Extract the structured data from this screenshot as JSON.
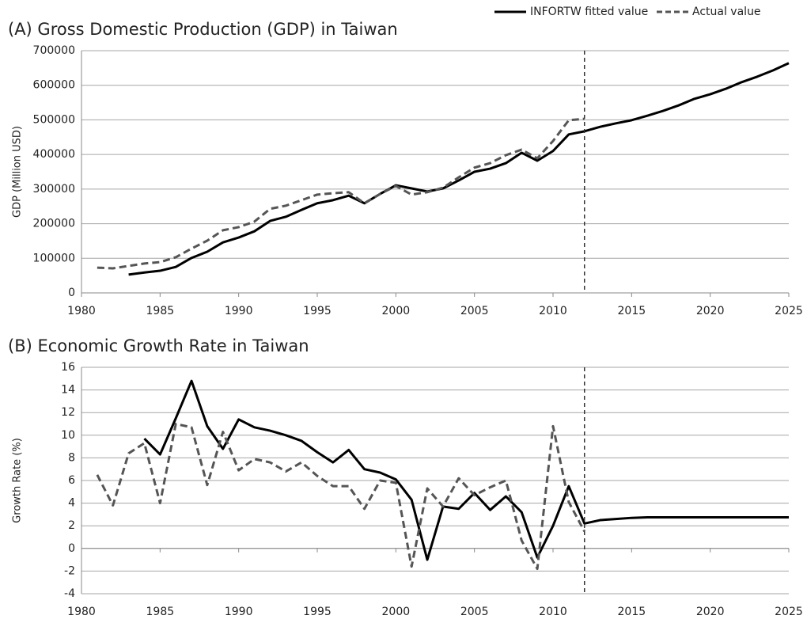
{
  "chart_data": [
    {
      "type": "line",
      "title": "(A) Gross Domestic Production (GDP) in Taiwan",
      "y_label": "GDP (Million USD)",
      "x": [
        1981,
        1982,
        1983,
        1984,
        1985,
        1986,
        1987,
        1988,
        1989,
        1990,
        1991,
        1992,
        1993,
        1994,
        1995,
        1996,
        1997,
        1998,
        1999,
        2000,
        2001,
        2002,
        2003,
        2004,
        2005,
        2006,
        2007,
        2008,
        2009,
        2010,
        2011,
        2012,
        2013,
        2014,
        2015,
        2016,
        2017,
        2018,
        2019,
        2020,
        2021,
        2022,
        2023,
        2024,
        2025
      ],
      "series": [
        {
          "name": "INFORTW fitted value",
          "color": "#000000",
          "dash": false,
          "values": [
            null,
            null,
            53000,
            59000,
            64000,
            75000,
            101000,
            119000,
            146000,
            160000,
            178000,
            208000,
            220000,
            240000,
            259000,
            268000,
            281000,
            259000,
            286000,
            311000,
            302000,
            293000,
            302000,
            325000,
            350000,
            359000,
            375000,
            405000,
            382000,
            410000,
            458000,
            467000,
            480000,
            490000,
            499000,
            512000,
            526000,
            542000,
            561000,
            574000,
            590000,
            609000,
            625000,
            643000,
            664000
          ]
        },
        {
          "name": "Actual value",
          "color": "#555555",
          "dash": true,
          "values": [
            73000,
            71000,
            78000,
            85000,
            89000,
            103000,
            128000,
            151000,
            181000,
            190000,
            206000,
            243000,
            252000,
            268000,
            284000,
            288000,
            291000,
            259000,
            286000,
            309000,
            284000,
            291000,
            304000,
            334000,
            362000,
            375000,
            398000,
            414000,
            389000,
            439000,
            499000,
            503000,
            null,
            null,
            null,
            null,
            null,
            null,
            null,
            null,
            null,
            null,
            null,
            null,
            null
          ]
        }
      ],
      "xlim": [
        1980,
        2025
      ],
      "xticks": [
        1980,
        1985,
        1990,
        1995,
        2000,
        2005,
        2010,
        2015,
        2020,
        2025
      ],
      "ylim": [
        0,
        700000
      ],
      "yticks": [
        0,
        100000,
        200000,
        300000,
        400000,
        500000,
        600000,
        700000
      ],
      "vline": 2012,
      "grid": true
    },
    {
      "type": "line",
      "title": "(B) Economic Growth Rate in Taiwan",
      "y_label": "Growth Rate (%)",
      "x": [
        1981,
        1982,
        1983,
        1984,
        1985,
        1986,
        1987,
        1988,
        1989,
        1990,
        1991,
        1992,
        1993,
        1994,
        1995,
        1996,
        1997,
        1998,
        1999,
        2000,
        2001,
        2002,
        2003,
        2004,
        2005,
        2006,
        2007,
        2008,
        2009,
        2010,
        2011,
        2012,
        2013,
        2014,
        2015,
        2016,
        2017,
        2018,
        2019,
        2020,
        2021,
        2022,
        2023,
        2024,
        2025
      ],
      "series": [
        {
          "color": "#000000",
          "dash": false,
          "values": [
            null,
            null,
            null,
            9.7,
            8.3,
            11.5,
            14.8,
            10.8,
            8.8,
            11.4,
            10.7,
            10.4,
            10.0,
            9.5,
            8.5,
            7.6,
            8.7,
            7.0,
            6.7,
            6.1,
            4.3,
            -1.0,
            3.7,
            3.5,
            4.9,
            3.4,
            4.6,
            3.2,
            -0.8,
            2.0,
            5.5,
            2.2,
            2.5,
            2.6,
            2.7,
            2.75,
            2.75,
            2.75,
            2.75,
            2.75,
            2.75,
            2.75,
            2.75,
            2.75,
            2.75
          ]
        },
        {
          "color": "#555555",
          "dash": true,
          "values": [
            6.5,
            3.8,
            8.4,
            9.3,
            4.0,
            11.0,
            10.7,
            5.6,
            10.3,
            6.9,
            7.9,
            7.6,
            6.8,
            7.6,
            6.4,
            5.5,
            5.5,
            3.5,
            6.0,
            5.8,
            -1.6,
            5.3,
            3.7,
            6.2,
            4.7,
            5.4,
            6.0,
            0.7,
            -1.8,
            10.8,
            4.1,
            1.5,
            null,
            null,
            null,
            null,
            null,
            null,
            null,
            null,
            null,
            null,
            null,
            null,
            null
          ]
        }
      ],
      "xlim": [
        1980,
        2025
      ],
      "xticks": [
        1980,
        1985,
        1990,
        1995,
        2000,
        2005,
        2010,
        2015,
        2020,
        2025
      ],
      "ylim": [
        -4,
        16
      ],
      "yticks": [
        -4,
        -2,
        0,
        2,
        4,
        6,
        8,
        10,
        12,
        14,
        16
      ],
      "vline": 2012,
      "grid": true
    }
  ]
}
